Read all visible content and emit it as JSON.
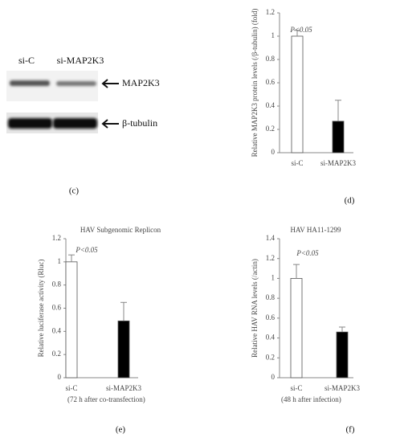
{
  "blot": {
    "lanes": [
      "si-C",
      "si-MAP2K3"
    ],
    "bands": [
      "MAP2K3",
      "β-tubulin"
    ],
    "panel_label": "(c)"
  },
  "chart_data": [
    {
      "type": "bar",
      "panel_label": "(d)",
      "ylabel": "Relative MAP2K3 protein levels (/β-tubulin) (fold)",
      "annotation": "P<0.05",
      "categories": [
        "si-C",
        "si-MAP2K3"
      ],
      "values": [
        1.0,
        0.27
      ],
      "errors": [
        0.05,
        0.18
      ],
      "colors": [
        "#ffffff",
        "#000000"
      ],
      "ylim": [
        0,
        1.2
      ],
      "yticks": [
        0,
        0.2,
        0.4,
        0.6,
        0.8,
        1,
        1.2
      ]
    },
    {
      "type": "bar",
      "panel_label": "(e)",
      "title": "HAV Subgenomic Replicon",
      "ylabel": "Relative luciferase activity (Rluc)",
      "xlabel": "(72 h after co-transfection)",
      "annotation": "P<0.05",
      "categories": [
        "si-C",
        "si-MAP2K3"
      ],
      "values": [
        1.0,
        0.49
      ],
      "errors": [
        0.06,
        0.16
      ],
      "colors": [
        "#ffffff",
        "#000000"
      ],
      "ylim": [
        0,
        1.2
      ],
      "yticks": [
        0,
        0.2,
        0.4,
        0.6,
        0.8,
        1,
        1.2
      ]
    },
    {
      "type": "bar",
      "panel_label": "(f)",
      "title": "HAV HA11-1299",
      "ylabel": "Relative HAV RNA levels (/actin)",
      "xlabel": "(48 h after infection)",
      "annotation": "P<0.05",
      "categories": [
        "si-C",
        "si-MAP2K3"
      ],
      "values": [
        1.0,
        0.46
      ],
      "errors": [
        0.14,
        0.05
      ],
      "colors": [
        "#ffffff",
        "#000000"
      ],
      "ylim": [
        0,
        1.4
      ],
      "yticks": [
        0,
        0.2,
        0.4,
        0.6,
        0.8,
        1,
        1.2,
        1.4
      ]
    }
  ]
}
